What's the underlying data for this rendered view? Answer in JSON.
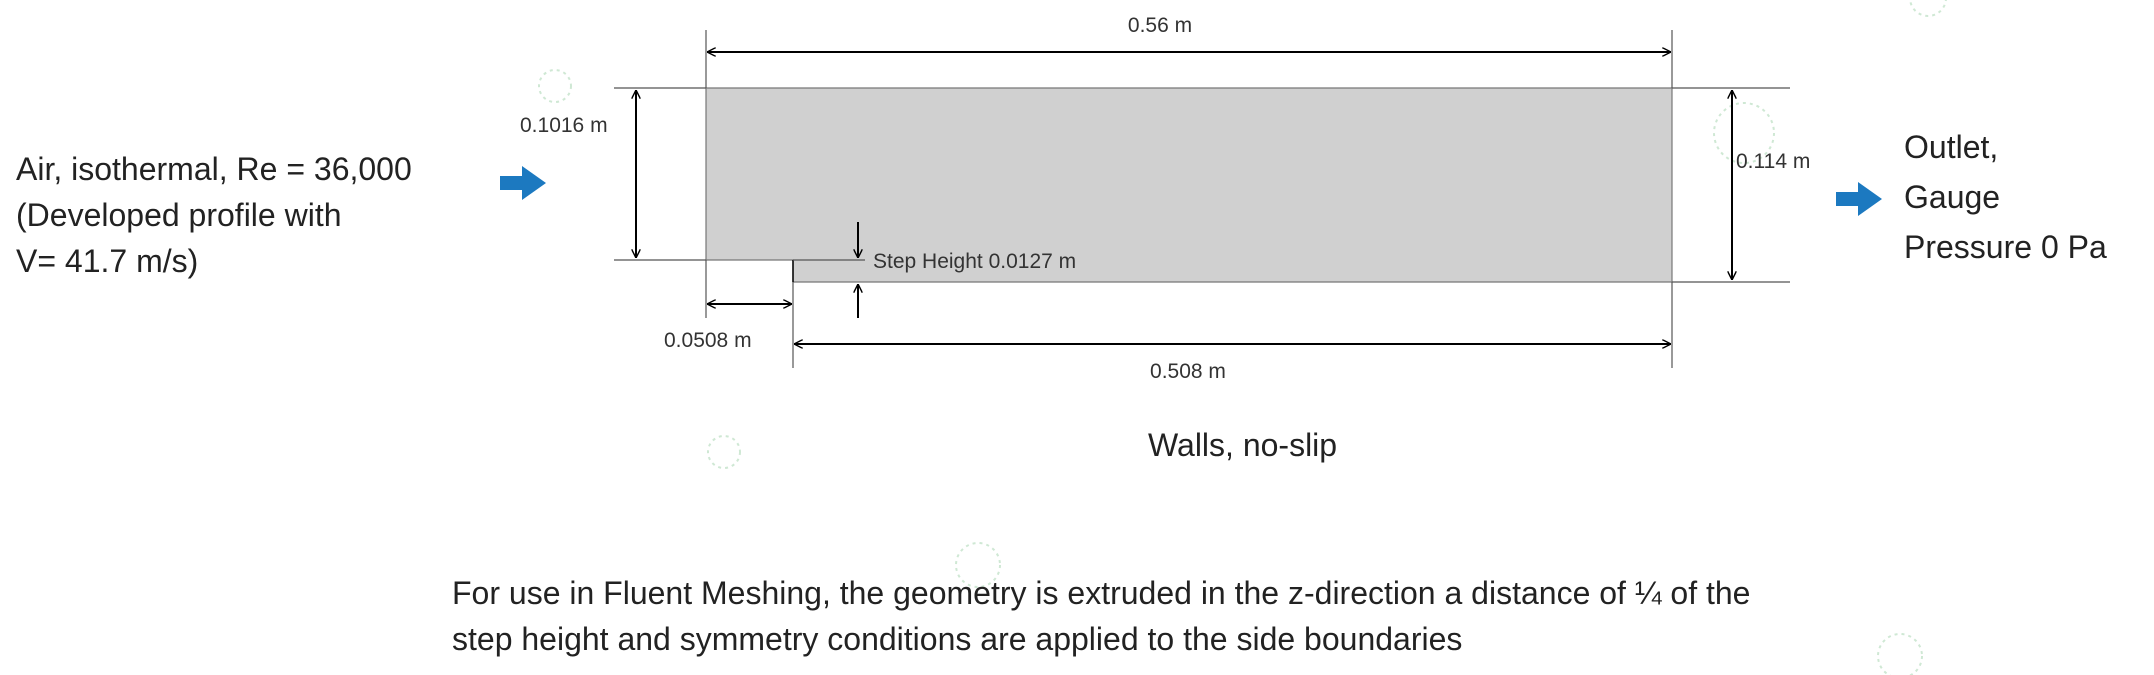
{
  "inlet": {
    "lines": [
      "Air, isothermal, Re = 36,000",
      "(Developed profile with",
      "V= 41.7 m/s)"
    ]
  },
  "outlet": {
    "lines": [
      "Outlet,",
      "Gauge",
      "Pressure 0 Pa"
    ]
  },
  "dimensions": {
    "total_length": "0.56 m",
    "inlet_height": "0.1016 m",
    "outlet_height": "0.114 m",
    "step_height": "Step Height 0.0127 m",
    "step_length": "0.0508 m",
    "downstream_length": "0.508 m"
  },
  "walls_label": "Walls, no-slip",
  "note": {
    "lines": [
      "For use in Fluent Meshing, the geometry is extruded in the z-direction a distance of ¼ of the",
      "step height and symmetry conditions are applied to the side boundaries"
    ]
  },
  "colors": {
    "domain_fill": "#d0d0d0",
    "flow_arrow": "#1c79c0",
    "dim_line": "#000000"
  }
}
